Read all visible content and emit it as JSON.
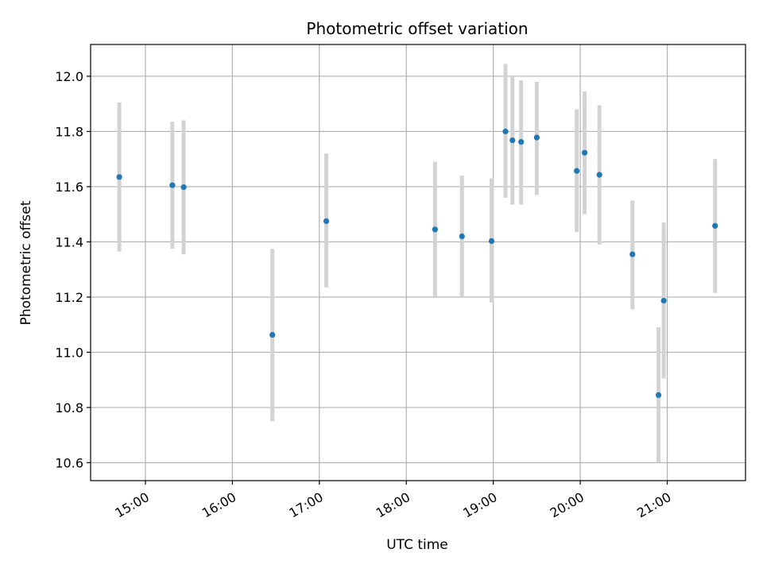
{
  "chart_data": {
    "type": "scatter",
    "title": "Photometric offset variation",
    "xlabel": "UTC time",
    "ylabel": "Photometric offset",
    "x_unit": "UTC hours",
    "xlim": [
      14.37,
      21.9
    ],
    "ylim": [
      10.535,
      12.115
    ],
    "grid": true,
    "marker_color": "#1f77b4",
    "errorbar_color": "#d3d3d3",
    "x_ticks": [
      {
        "value": 15,
        "label": "15:00"
      },
      {
        "value": 16,
        "label": "16:00"
      },
      {
        "value": 17,
        "label": "17:00"
      },
      {
        "value": 18,
        "label": "18:00"
      },
      {
        "value": 19,
        "label": "19:00"
      },
      {
        "value": 20,
        "label": "20:00"
      },
      {
        "value": 21,
        "label": "21:00"
      }
    ],
    "y_ticks": [
      {
        "value": 10.6,
        "label": "10.6"
      },
      {
        "value": 10.8,
        "label": "10.8"
      },
      {
        "value": 11.0,
        "label": "11.0"
      },
      {
        "value": 11.2,
        "label": "11.2"
      },
      {
        "value": 11.4,
        "label": "11.4"
      },
      {
        "value": 11.6,
        "label": "11.6"
      },
      {
        "value": 11.8,
        "label": "11.8"
      },
      {
        "value": 12.0,
        "label": "12.0"
      }
    ],
    "points": [
      {
        "x": 14.7,
        "y": 11.635,
        "low": 11.365,
        "high": 11.905
      },
      {
        "x": 15.31,
        "y": 11.605,
        "low": 11.375,
        "high": 11.835
      },
      {
        "x": 15.44,
        "y": 11.598,
        "low": 11.355,
        "high": 11.84
      },
      {
        "x": 16.46,
        "y": 11.063,
        "low": 10.75,
        "high": 11.375
      },
      {
        "x": 17.08,
        "y": 11.475,
        "low": 11.235,
        "high": 11.72
      },
      {
        "x": 18.33,
        "y": 11.445,
        "low": 11.2,
        "high": 11.69
      },
      {
        "x": 18.64,
        "y": 11.42,
        "low": 11.2,
        "high": 11.64
      },
      {
        "x": 18.98,
        "y": 11.403,
        "low": 11.18,
        "high": 11.63
      },
      {
        "x": 19.14,
        "y": 11.8,
        "low": 11.56,
        "high": 12.045
      },
      {
        "x": 19.22,
        "y": 11.768,
        "low": 11.535,
        "high": 12.0
      },
      {
        "x": 19.32,
        "y": 11.762,
        "low": 11.535,
        "high": 11.985
      },
      {
        "x": 19.5,
        "y": 11.778,
        "low": 11.57,
        "high": 11.98
      },
      {
        "x": 19.96,
        "y": 11.657,
        "low": 11.435,
        "high": 11.88
      },
      {
        "x": 20.05,
        "y": 11.723,
        "low": 11.5,
        "high": 11.945
      },
      {
        "x": 20.22,
        "y": 11.643,
        "low": 11.39,
        "high": 11.895
      },
      {
        "x": 20.6,
        "y": 11.355,
        "low": 11.155,
        "high": 11.55
      },
      {
        "x": 20.9,
        "y": 10.845,
        "low": 10.6,
        "high": 11.09
      },
      {
        "x": 20.96,
        "y": 11.187,
        "low": 10.905,
        "high": 11.47
      },
      {
        "x": 21.55,
        "y": 11.458,
        "low": 11.215,
        "high": 11.7
      }
    ]
  }
}
